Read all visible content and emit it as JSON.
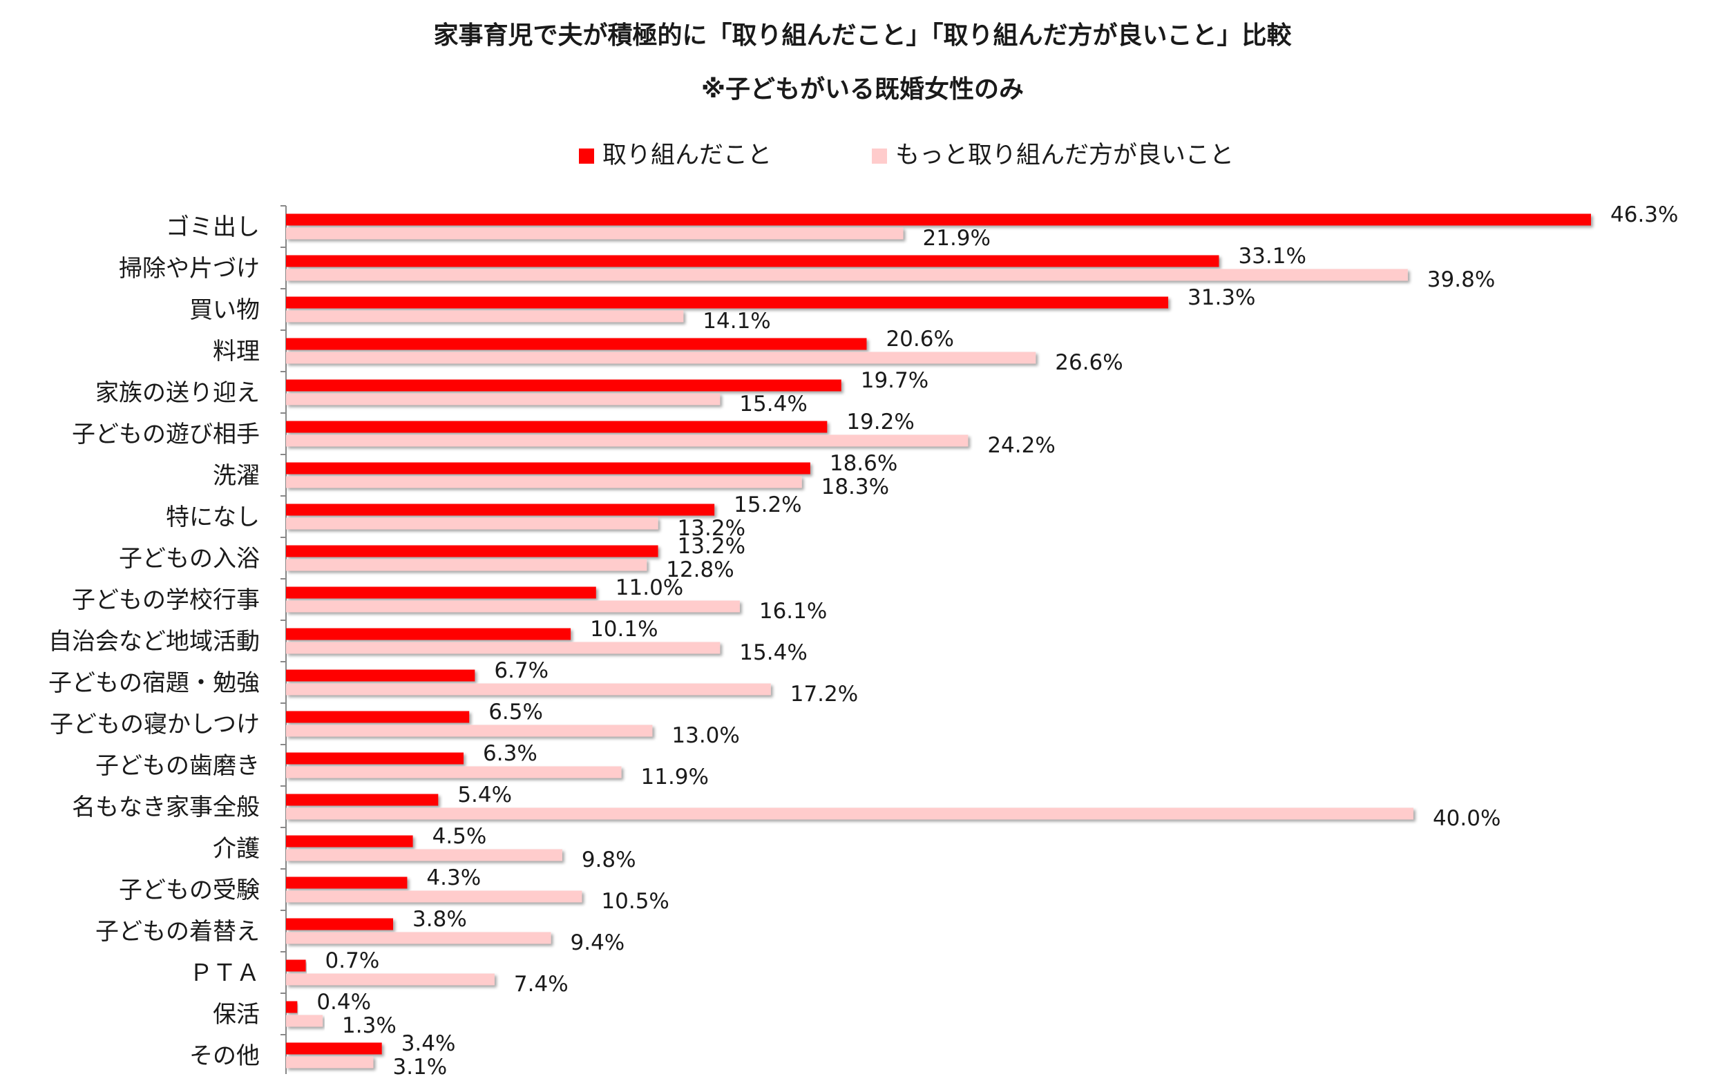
{
  "chart_data": {
    "type": "bar",
    "orientation": "horizontal",
    "title": "家事育児で夫が積極的に「取り組んだこと」「取り組んだ方が良いこと」比較",
    "subtitle": "※子どもがいる既婚女性のみ",
    "legend_position": "top",
    "grid": false,
    "xlim": [
      0,
      46.3
    ],
    "value_suffix": "%",
    "categories": [
      "ゴミ出し",
      "掃除や片づけ",
      "買い物",
      "料理",
      "家族の送り迎え",
      "子どもの遊び相手",
      "洗濯",
      "特になし",
      "子どもの入浴",
      "子どもの学校行事",
      "自治会など地域活動",
      "子どもの宿題・勉強",
      "子どもの寝かしつけ",
      "子どもの歯磨き",
      "名もなき家事全般",
      "介護",
      "子どもの受験",
      "子どもの着替え",
      "ＰＴＡ",
      "保活",
      "その他"
    ],
    "series": [
      {
        "name": "取り組んだこと",
        "color": "#ff0000",
        "values": [
          46.3,
          33.1,
          31.3,
          20.6,
          19.7,
          19.2,
          18.6,
          15.2,
          13.2,
          11.0,
          10.1,
          6.7,
          6.5,
          6.3,
          5.4,
          4.5,
          4.3,
          3.8,
          0.7,
          0.4,
          3.4
        ]
      },
      {
        "name": "もっと取り組んだ方が良いこと",
        "color": "#ffcccc",
        "values": [
          21.9,
          39.8,
          14.1,
          26.6,
          15.4,
          24.2,
          18.3,
          13.2,
          12.8,
          16.1,
          15.4,
          17.2,
          13.0,
          11.9,
          40.0,
          9.8,
          10.5,
          9.4,
          7.4,
          1.3,
          3.1
        ]
      }
    ]
  }
}
